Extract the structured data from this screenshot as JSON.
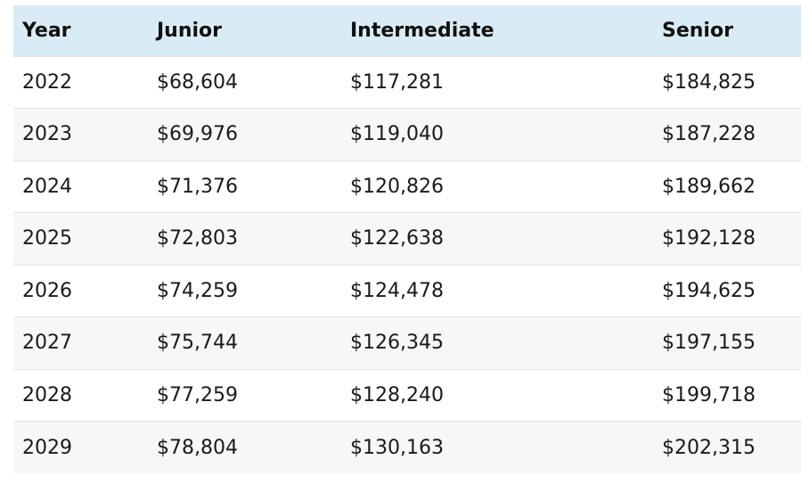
{
  "table": {
    "headers": [
      "Year",
      "Junior",
      "Intermediate",
      "Senior"
    ],
    "rows": [
      [
        "2022",
        "$68,604",
        "$117,281",
        "$184,825"
      ],
      [
        "2023",
        "$69,976",
        "$119,040",
        "$187,228"
      ],
      [
        "2024",
        "$71,376",
        "$120,826",
        "$189,662"
      ],
      [
        "2025",
        "$72,803",
        "$122,638",
        "$192,128"
      ],
      [
        "2026",
        "$74,259",
        "$124,478",
        "$194,625"
      ],
      [
        "2027",
        "$75,744",
        "$126,345",
        "$197,155"
      ],
      [
        "2028",
        "$77,259",
        "$128,240",
        "$199,718"
      ],
      [
        "2029",
        "$78,804",
        "$130,163",
        "$202,315"
      ]
    ]
  },
  "colors": {
    "header_bg": "#d9ecf5",
    "stripe_bg": "#f7f7f7",
    "row_border": "#e2e2e2"
  }
}
